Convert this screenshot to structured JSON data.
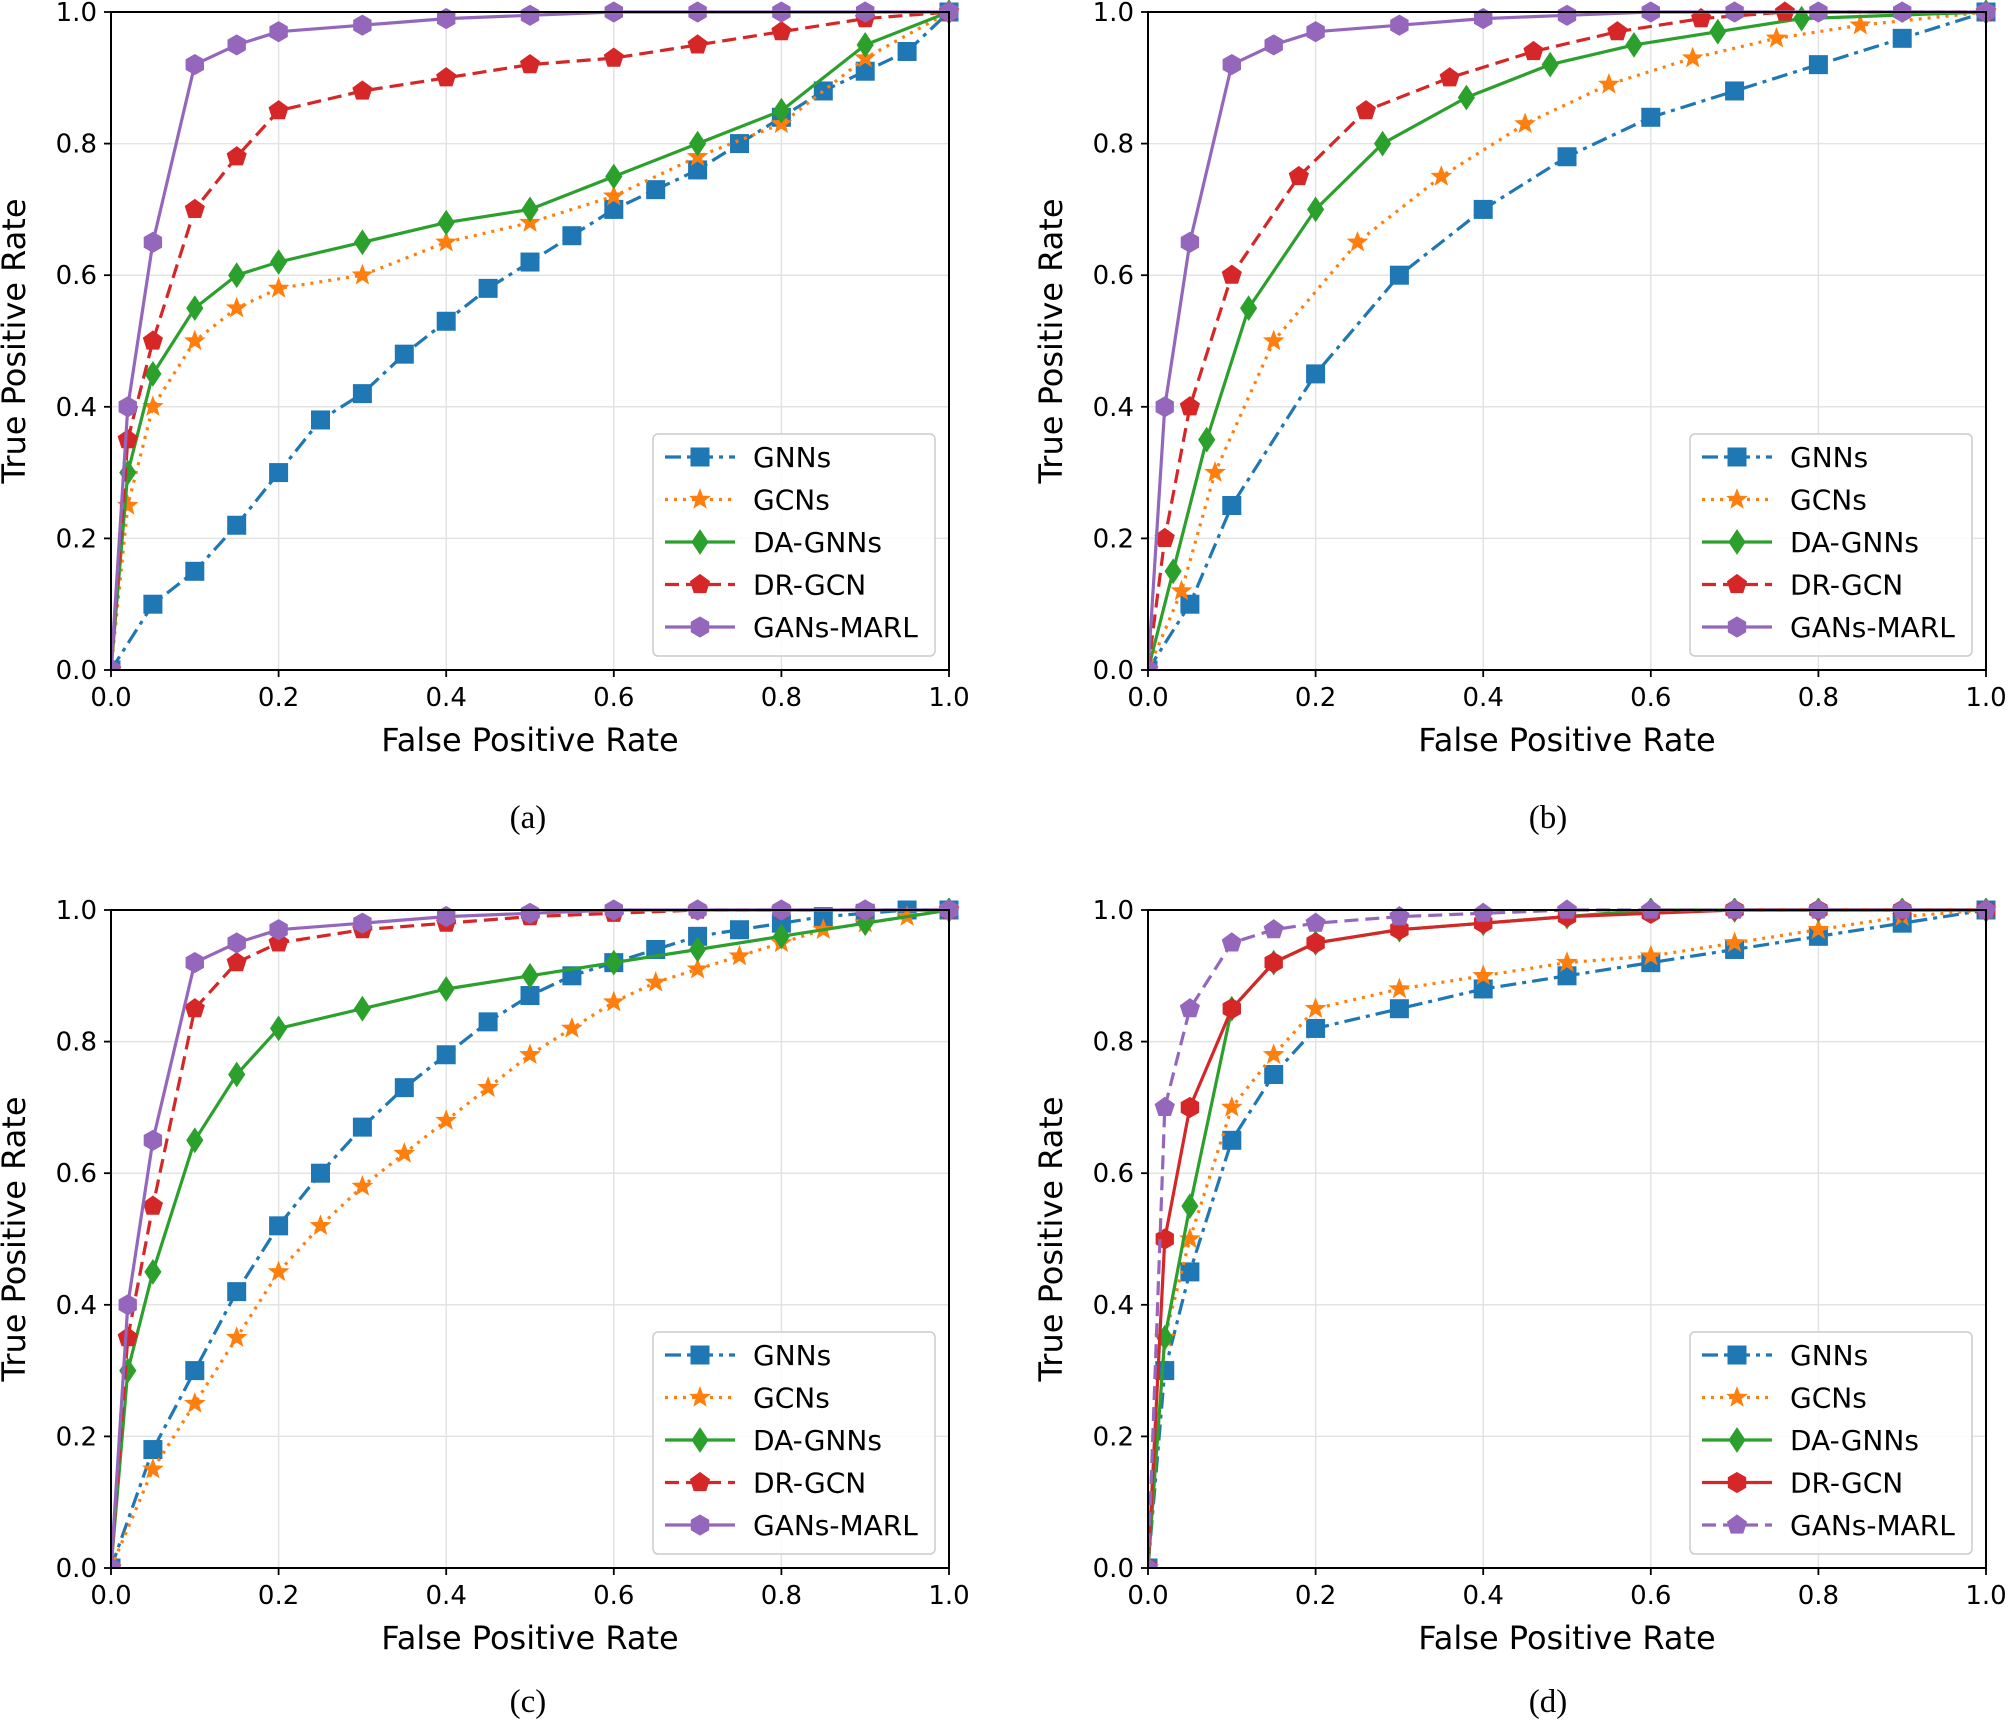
{
  "figure": {
    "colors": {
      "GNNs": "#1f77b4",
      "GCNs": "#ff7f0e",
      "DA-GNNs": "#2ca02c",
      "DR-GCN": "#d62728",
      "GANs-MARL": "#9467bd"
    }
  },
  "chart_data": [
    {
      "type": "line",
      "caption": "(a)",
      "xlabel": "False Positive Rate",
      "ylabel": "True Positive Rate",
      "xlim": [
        0,
        1
      ],
      "ylim": [
        0,
        1
      ],
      "xticks": [
        "0.0",
        "0.2",
        "0.4",
        "0.6",
        "0.8",
        "1.0"
      ],
      "yticks": [
        "0.0",
        "0.2",
        "0.4",
        "0.6",
        "0.8",
        "1.0"
      ],
      "grid": true,
      "legend_position": "lower-right",
      "series": [
        {
          "name": "GNNs",
          "color": "#1f77b4",
          "dash": "dashdot",
          "marker": "square",
          "x": [
            0,
            0.05,
            0.1,
            0.15,
            0.2,
            0.25,
            0.3,
            0.35,
            0.4,
            0.45,
            0.5,
            0.55,
            0.6,
            0.65,
            0.7,
            0.75,
            0.8,
            0.85,
            0.9,
            0.95,
            1.0
          ],
          "y": [
            0,
            0.1,
            0.15,
            0.22,
            0.3,
            0.38,
            0.42,
            0.48,
            0.53,
            0.58,
            0.62,
            0.66,
            0.7,
            0.73,
            0.76,
            0.8,
            0.84,
            0.88,
            0.91,
            0.94,
            1.0
          ]
        },
        {
          "name": "GCNs",
          "color": "#ff7f0e",
          "dash": "dotted",
          "marker": "star",
          "x": [
            0,
            0.02,
            0.05,
            0.1,
            0.15,
            0.2,
            0.3,
            0.4,
            0.5,
            0.6,
            0.7,
            0.8,
            0.9,
            1.0
          ],
          "y": [
            0,
            0.25,
            0.4,
            0.5,
            0.55,
            0.58,
            0.6,
            0.65,
            0.68,
            0.72,
            0.78,
            0.83,
            0.93,
            1.0
          ]
        },
        {
          "name": "DA-GNNs",
          "color": "#2ca02c",
          "dash": "solid",
          "marker": "diamond",
          "x": [
            0,
            0.02,
            0.05,
            0.1,
            0.15,
            0.2,
            0.3,
            0.4,
            0.5,
            0.6,
            0.7,
            0.8,
            0.9,
            1.0
          ],
          "y": [
            0,
            0.3,
            0.45,
            0.55,
            0.6,
            0.62,
            0.65,
            0.68,
            0.7,
            0.75,
            0.8,
            0.85,
            0.95,
            1.0
          ]
        },
        {
          "name": "DR-GCN",
          "color": "#d62728",
          "dash": "dashed",
          "marker": "pentagon",
          "x": [
            0,
            0.02,
            0.05,
            0.1,
            0.15,
            0.2,
            0.3,
            0.4,
            0.5,
            0.6,
            0.7,
            0.8,
            0.9,
            1.0
          ],
          "y": [
            0,
            0.35,
            0.5,
            0.7,
            0.78,
            0.85,
            0.88,
            0.9,
            0.92,
            0.93,
            0.95,
            0.97,
            0.99,
            1.0
          ]
        },
        {
          "name": "GANs-MARL",
          "color": "#9467bd",
          "dash": "solid",
          "marker": "hexagon",
          "x": [
            0,
            0.02,
            0.05,
            0.1,
            0.15,
            0.2,
            0.3,
            0.4,
            0.5,
            0.6,
            0.7,
            0.8,
            0.9,
            1.0
          ],
          "y": [
            0,
            0.4,
            0.65,
            0.92,
            0.95,
            0.97,
            0.98,
            0.99,
            0.995,
            1.0,
            1.0,
            1.0,
            1.0,
            1.0
          ]
        }
      ]
    },
    {
      "type": "line",
      "caption": "(b)",
      "xlabel": "False Positive Rate",
      "ylabel": "True Positive Rate",
      "xlim": [
        0,
        1
      ],
      "ylim": [
        0,
        1
      ],
      "xticks": [
        "0.0",
        "0.2",
        "0.4",
        "0.6",
        "0.8",
        "1.0"
      ],
      "yticks": [
        "0.0",
        "0.2",
        "0.4",
        "0.6",
        "0.8",
        "1.0"
      ],
      "grid": true,
      "legend_position": "lower-right",
      "series": [
        {
          "name": "GNNs",
          "color": "#1f77b4",
          "dash": "dashdot",
          "marker": "square",
          "x": [
            0,
            0.05,
            0.1,
            0.2,
            0.3,
            0.4,
            0.5,
            0.6,
            0.7,
            0.8,
            0.9,
            1.0
          ],
          "y": [
            0,
            0.1,
            0.25,
            0.45,
            0.6,
            0.7,
            0.78,
            0.84,
            0.88,
            0.92,
            0.96,
            1.0
          ]
        },
        {
          "name": "GCNs",
          "color": "#ff7f0e",
          "dash": "dotted",
          "marker": "star",
          "x": [
            0,
            0.04,
            0.08,
            0.15,
            0.25,
            0.35,
            0.45,
            0.55,
            0.65,
            0.75,
            0.85,
            1.0
          ],
          "y": [
            0,
            0.12,
            0.3,
            0.5,
            0.65,
            0.75,
            0.83,
            0.89,
            0.93,
            0.96,
            0.98,
            1.0
          ]
        },
        {
          "name": "DA-GNNs",
          "color": "#2ca02c",
          "dash": "solid",
          "marker": "diamond",
          "x": [
            0,
            0.03,
            0.07,
            0.12,
            0.2,
            0.28,
            0.38,
            0.48,
            0.58,
            0.68,
            0.78,
            1.0
          ],
          "y": [
            0,
            0.15,
            0.35,
            0.55,
            0.7,
            0.8,
            0.87,
            0.92,
            0.95,
            0.97,
            0.99,
            1.0
          ]
        },
        {
          "name": "DR-GCN",
          "color": "#d62728",
          "dash": "dashed",
          "marker": "pentagon",
          "x": [
            0,
            0.02,
            0.05,
            0.1,
            0.18,
            0.26,
            0.36,
            0.46,
            0.56,
            0.66,
            0.76,
            1.0
          ],
          "y": [
            0,
            0.2,
            0.4,
            0.6,
            0.75,
            0.85,
            0.9,
            0.94,
            0.97,
            0.99,
            1.0,
            1.0
          ]
        },
        {
          "name": "GANs-MARL",
          "color": "#9467bd",
          "dash": "solid",
          "marker": "hexagon",
          "x": [
            0,
            0.02,
            0.05,
            0.1,
            0.15,
            0.2,
            0.3,
            0.4,
            0.5,
            0.6,
            0.7,
            0.8,
            0.9,
            1.0
          ],
          "y": [
            0,
            0.4,
            0.65,
            0.92,
            0.95,
            0.97,
            0.98,
            0.99,
            0.995,
            1.0,
            1.0,
            1.0,
            1.0,
            1.0
          ]
        }
      ]
    },
    {
      "type": "line",
      "caption": "(c)",
      "xlabel": "False Positive Rate",
      "ylabel": "True Positive Rate",
      "xlim": [
        0,
        1
      ],
      "ylim": [
        0,
        1
      ],
      "xticks": [
        "0.0",
        "0.2",
        "0.4",
        "0.6",
        "0.8",
        "1.0"
      ],
      "yticks": [
        "0.0",
        "0.2",
        "0.4",
        "0.6",
        "0.8",
        "1.0"
      ],
      "grid": true,
      "legend_position": "lower-right",
      "series": [
        {
          "name": "GNNs",
          "color": "#1f77b4",
          "dash": "dashdot",
          "marker": "square",
          "x": [
            0,
            0.05,
            0.1,
            0.15,
            0.2,
            0.25,
            0.3,
            0.35,
            0.4,
            0.45,
            0.5,
            0.55,
            0.6,
            0.65,
            0.7,
            0.75,
            0.8,
            0.85,
            0.9,
            0.95,
            1.0
          ],
          "y": [
            0,
            0.18,
            0.3,
            0.42,
            0.52,
            0.6,
            0.67,
            0.73,
            0.78,
            0.83,
            0.87,
            0.9,
            0.92,
            0.94,
            0.96,
            0.97,
            0.98,
            0.99,
            0.995,
            1.0,
            1.0
          ]
        },
        {
          "name": "GCNs",
          "color": "#ff7f0e",
          "dash": "dotted",
          "marker": "star",
          "x": [
            0,
            0.05,
            0.1,
            0.15,
            0.2,
            0.25,
            0.3,
            0.35,
            0.4,
            0.45,
            0.5,
            0.55,
            0.6,
            0.65,
            0.7,
            0.75,
            0.8,
            0.85,
            0.9,
            0.95,
            1.0
          ],
          "y": [
            0,
            0.15,
            0.25,
            0.35,
            0.45,
            0.52,
            0.58,
            0.63,
            0.68,
            0.73,
            0.78,
            0.82,
            0.86,
            0.89,
            0.91,
            0.93,
            0.95,
            0.97,
            0.98,
            0.99,
            1.0
          ]
        },
        {
          "name": "DA-GNNs",
          "color": "#2ca02c",
          "dash": "solid",
          "marker": "diamond",
          "x": [
            0,
            0.02,
            0.05,
            0.1,
            0.15,
            0.2,
            0.3,
            0.4,
            0.5,
            0.6,
            0.7,
            0.8,
            0.9,
            1.0
          ],
          "y": [
            0,
            0.3,
            0.45,
            0.65,
            0.75,
            0.82,
            0.85,
            0.88,
            0.9,
            0.92,
            0.94,
            0.96,
            0.98,
            1.0
          ]
        },
        {
          "name": "DR-GCN",
          "color": "#d62728",
          "dash": "dashed",
          "marker": "pentagon",
          "x": [
            0,
            0.02,
            0.05,
            0.1,
            0.15,
            0.2,
            0.3,
            0.4,
            0.5,
            0.6,
            0.7,
            0.8,
            0.9,
            1.0
          ],
          "y": [
            0,
            0.35,
            0.55,
            0.85,
            0.92,
            0.95,
            0.97,
            0.98,
            0.99,
            0.995,
            1.0,
            1.0,
            1.0,
            1.0
          ]
        },
        {
          "name": "GANs-MARL",
          "color": "#9467bd",
          "dash": "solid",
          "marker": "hexagon",
          "x": [
            0,
            0.02,
            0.05,
            0.1,
            0.15,
            0.2,
            0.3,
            0.4,
            0.5,
            0.6,
            0.7,
            0.8,
            0.9,
            1.0
          ],
          "y": [
            0,
            0.4,
            0.65,
            0.92,
            0.95,
            0.97,
            0.98,
            0.99,
            0.995,
            1.0,
            1.0,
            1.0,
            1.0,
            1.0
          ]
        }
      ]
    },
    {
      "type": "line",
      "caption": "(d)",
      "xlabel": "False Positive Rate",
      "ylabel": "True Positive Rate",
      "xlim": [
        0,
        1
      ],
      "ylim": [
        0,
        1
      ],
      "xticks": [
        "0.0",
        "0.2",
        "0.4",
        "0.6",
        "0.8",
        "1.0"
      ],
      "yticks": [
        "0.0",
        "0.2",
        "0.4",
        "0.6",
        "0.8",
        "1.0"
      ],
      "grid": true,
      "legend_position": "lower-right",
      "series": [
        {
          "name": "GNNs",
          "color": "#1f77b4",
          "dash": "dashdot",
          "marker": "square",
          "x": [
            0,
            0.02,
            0.05,
            0.1,
            0.15,
            0.2,
            0.3,
            0.4,
            0.5,
            0.6,
            0.7,
            0.8,
            0.9,
            1.0
          ],
          "y": [
            0,
            0.3,
            0.45,
            0.65,
            0.75,
            0.82,
            0.85,
            0.88,
            0.9,
            0.92,
            0.94,
            0.96,
            0.98,
            1.0
          ]
        },
        {
          "name": "GCNs",
          "color": "#ff7f0e",
          "dash": "dotted",
          "marker": "star",
          "x": [
            0,
            0.02,
            0.05,
            0.1,
            0.15,
            0.2,
            0.3,
            0.4,
            0.5,
            0.6,
            0.7,
            0.8,
            0.9,
            1.0
          ],
          "y": [
            0,
            0.35,
            0.5,
            0.7,
            0.78,
            0.85,
            0.88,
            0.9,
            0.92,
            0.93,
            0.95,
            0.97,
            0.99,
            1.0
          ]
        },
        {
          "name": "DA-GNNs",
          "color": "#2ca02c",
          "dash": "solid",
          "marker": "diamond",
          "x": [
            0,
            0.02,
            0.05,
            0.1,
            0.15,
            0.2,
            0.3,
            0.4,
            0.5,
            0.6,
            0.7,
            0.8,
            0.9,
            1.0
          ],
          "y": [
            0,
            0.35,
            0.55,
            0.85,
            0.92,
            0.95,
            0.97,
            0.98,
            0.99,
            1.0,
            1.0,
            1.0,
            1.0,
            1.0
          ]
        },
        {
          "name": "DR-GCN",
          "color": "#d62728",
          "dash": "solid",
          "marker": "hexagon",
          "x": [
            0,
            0.02,
            0.05,
            0.1,
            0.15,
            0.2,
            0.3,
            0.4,
            0.5,
            0.6,
            0.7,
            0.8,
            0.9,
            1.0
          ],
          "y": [
            0,
            0.5,
            0.7,
            0.85,
            0.92,
            0.95,
            0.97,
            0.98,
            0.99,
            0.995,
            1.0,
            1.0,
            1.0,
            1.0
          ]
        },
        {
          "name": "GANs-MARL",
          "color": "#9467bd",
          "dash": "dashed",
          "marker": "pentagon",
          "x": [
            0,
            0.02,
            0.05,
            0.1,
            0.15,
            0.2,
            0.3,
            0.4,
            0.5,
            0.6,
            0.7,
            0.8,
            0.9,
            1.0
          ],
          "y": [
            0,
            0.7,
            0.85,
            0.95,
            0.97,
            0.98,
            0.99,
            0.995,
            1.0,
            1.0,
            1.0,
            1.0,
            1.0,
            1.0
          ]
        }
      ]
    }
  ]
}
